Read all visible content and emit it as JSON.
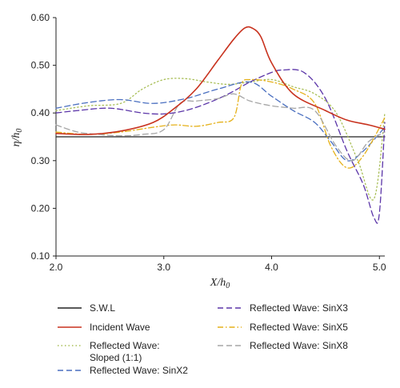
{
  "chart_data": {
    "type": "line",
    "xlabel": "X/h0",
    "ylabel": "η/h0",
    "xlim": [
      2.0,
      5.05
    ],
    "ylim": [
      0.1,
      0.6
    ],
    "xticks": [
      "2.0",
      "3.0",
      "4.0",
      "5.0"
    ],
    "yticks": [
      "0.10",
      "0.20",
      "0.30",
      "0.40",
      "0.50",
      "0.60"
    ],
    "grid": false,
    "legend_position": "bottom",
    "series": [
      {
        "name": "S.W.L",
        "color": "#222222",
        "dash": "solid",
        "x": [
          2.0,
          5.05
        ],
        "y": [
          0.35,
          0.35
        ]
      },
      {
        "name": "Incident Wave",
        "color": "#c8321e",
        "dash": "solid",
        "x": [
          2.0,
          2.3,
          2.6,
          2.9,
          3.1,
          3.3,
          3.5,
          3.65,
          3.75,
          3.82,
          3.9,
          4.0,
          4.2,
          4.5,
          4.7,
          4.9,
          5.05
        ],
        "y": [
          0.357,
          0.355,
          0.362,
          0.38,
          0.41,
          0.45,
          0.51,
          0.555,
          0.578,
          0.578,
          0.56,
          0.505,
          0.44,
          0.405,
          0.385,
          0.375,
          0.366
        ]
      },
      {
        "name": "Reflected Wave: Sloped (1:1)",
        "color": "#a9bf58",
        "dash": "dotted",
        "x": [
          2.0,
          2.3,
          2.6,
          2.8,
          3.0,
          3.2,
          3.4,
          3.6,
          3.8,
          4.0,
          4.2,
          4.4,
          4.6,
          4.8,
          4.95,
          5.05
        ],
        "y": [
          0.405,
          0.415,
          0.42,
          0.45,
          0.47,
          0.472,
          0.465,
          0.46,
          0.465,
          0.47,
          0.455,
          0.44,
          0.4,
          0.3,
          0.22,
          0.4
        ]
      },
      {
        "name": "Reflected Wave: SinX2",
        "color": "#4a6fc0",
        "dash": "dashed",
        "x": [
          2.0,
          2.3,
          2.6,
          2.9,
          3.2,
          3.5,
          3.8,
          4.0,
          4.2,
          4.4,
          4.55,
          4.7,
          4.85,
          5.05
        ],
        "y": [
          0.41,
          0.422,
          0.428,
          0.42,
          0.43,
          0.45,
          0.465,
          0.435,
          0.405,
          0.38,
          0.34,
          0.3,
          0.32,
          0.37
        ]
      },
      {
        "name": "Reflected Wave: SinX3",
        "color": "#5b35a8",
        "dash": "dashed",
        "x": [
          2.0,
          2.2,
          2.5,
          2.8,
          3.0,
          3.2,
          3.4,
          3.6,
          3.8,
          4.0,
          4.1,
          4.3,
          4.5,
          4.7,
          4.85,
          4.95,
          5.0,
          5.05
        ],
        "y": [
          0.4,
          0.405,
          0.41,
          0.4,
          0.398,
          0.405,
          0.42,
          0.44,
          0.465,
          0.485,
          0.49,
          0.485,
          0.43,
          0.32,
          0.25,
          0.18,
          0.19,
          0.38
        ]
      },
      {
        "name": "Reflected Wave: SinX5",
        "color": "#e5b11a",
        "dash": "dashdot",
        "x": [
          2.0,
          2.3,
          2.6,
          2.9,
          3.1,
          3.3,
          3.5,
          3.65,
          3.72,
          3.8,
          4.0,
          4.2,
          4.4,
          4.55,
          4.7,
          4.85,
          5.05
        ],
        "y": [
          0.36,
          0.355,
          0.36,
          0.37,
          0.375,
          0.372,
          0.38,
          0.39,
          0.46,
          0.47,
          0.465,
          0.45,
          0.42,
          0.33,
          0.285,
          0.31,
          0.39
        ]
      },
      {
        "name": "Reflected Wave: SinX8",
        "color": "#a6a6a6",
        "dash": "dashed",
        "x": [
          2.0,
          2.2,
          2.4,
          2.6,
          2.8,
          3.0,
          3.15,
          3.3,
          3.5,
          3.65,
          3.8,
          4.0,
          4.2,
          4.4,
          4.6,
          4.75,
          4.9,
          5.05
        ],
        "y": [
          0.375,
          0.36,
          0.355,
          0.352,
          0.355,
          0.365,
          0.42,
          0.425,
          0.43,
          0.44,
          0.425,
          0.415,
          0.41,
          0.405,
          0.33,
          0.3,
          0.34,
          0.36
        ]
      }
    ]
  }
}
